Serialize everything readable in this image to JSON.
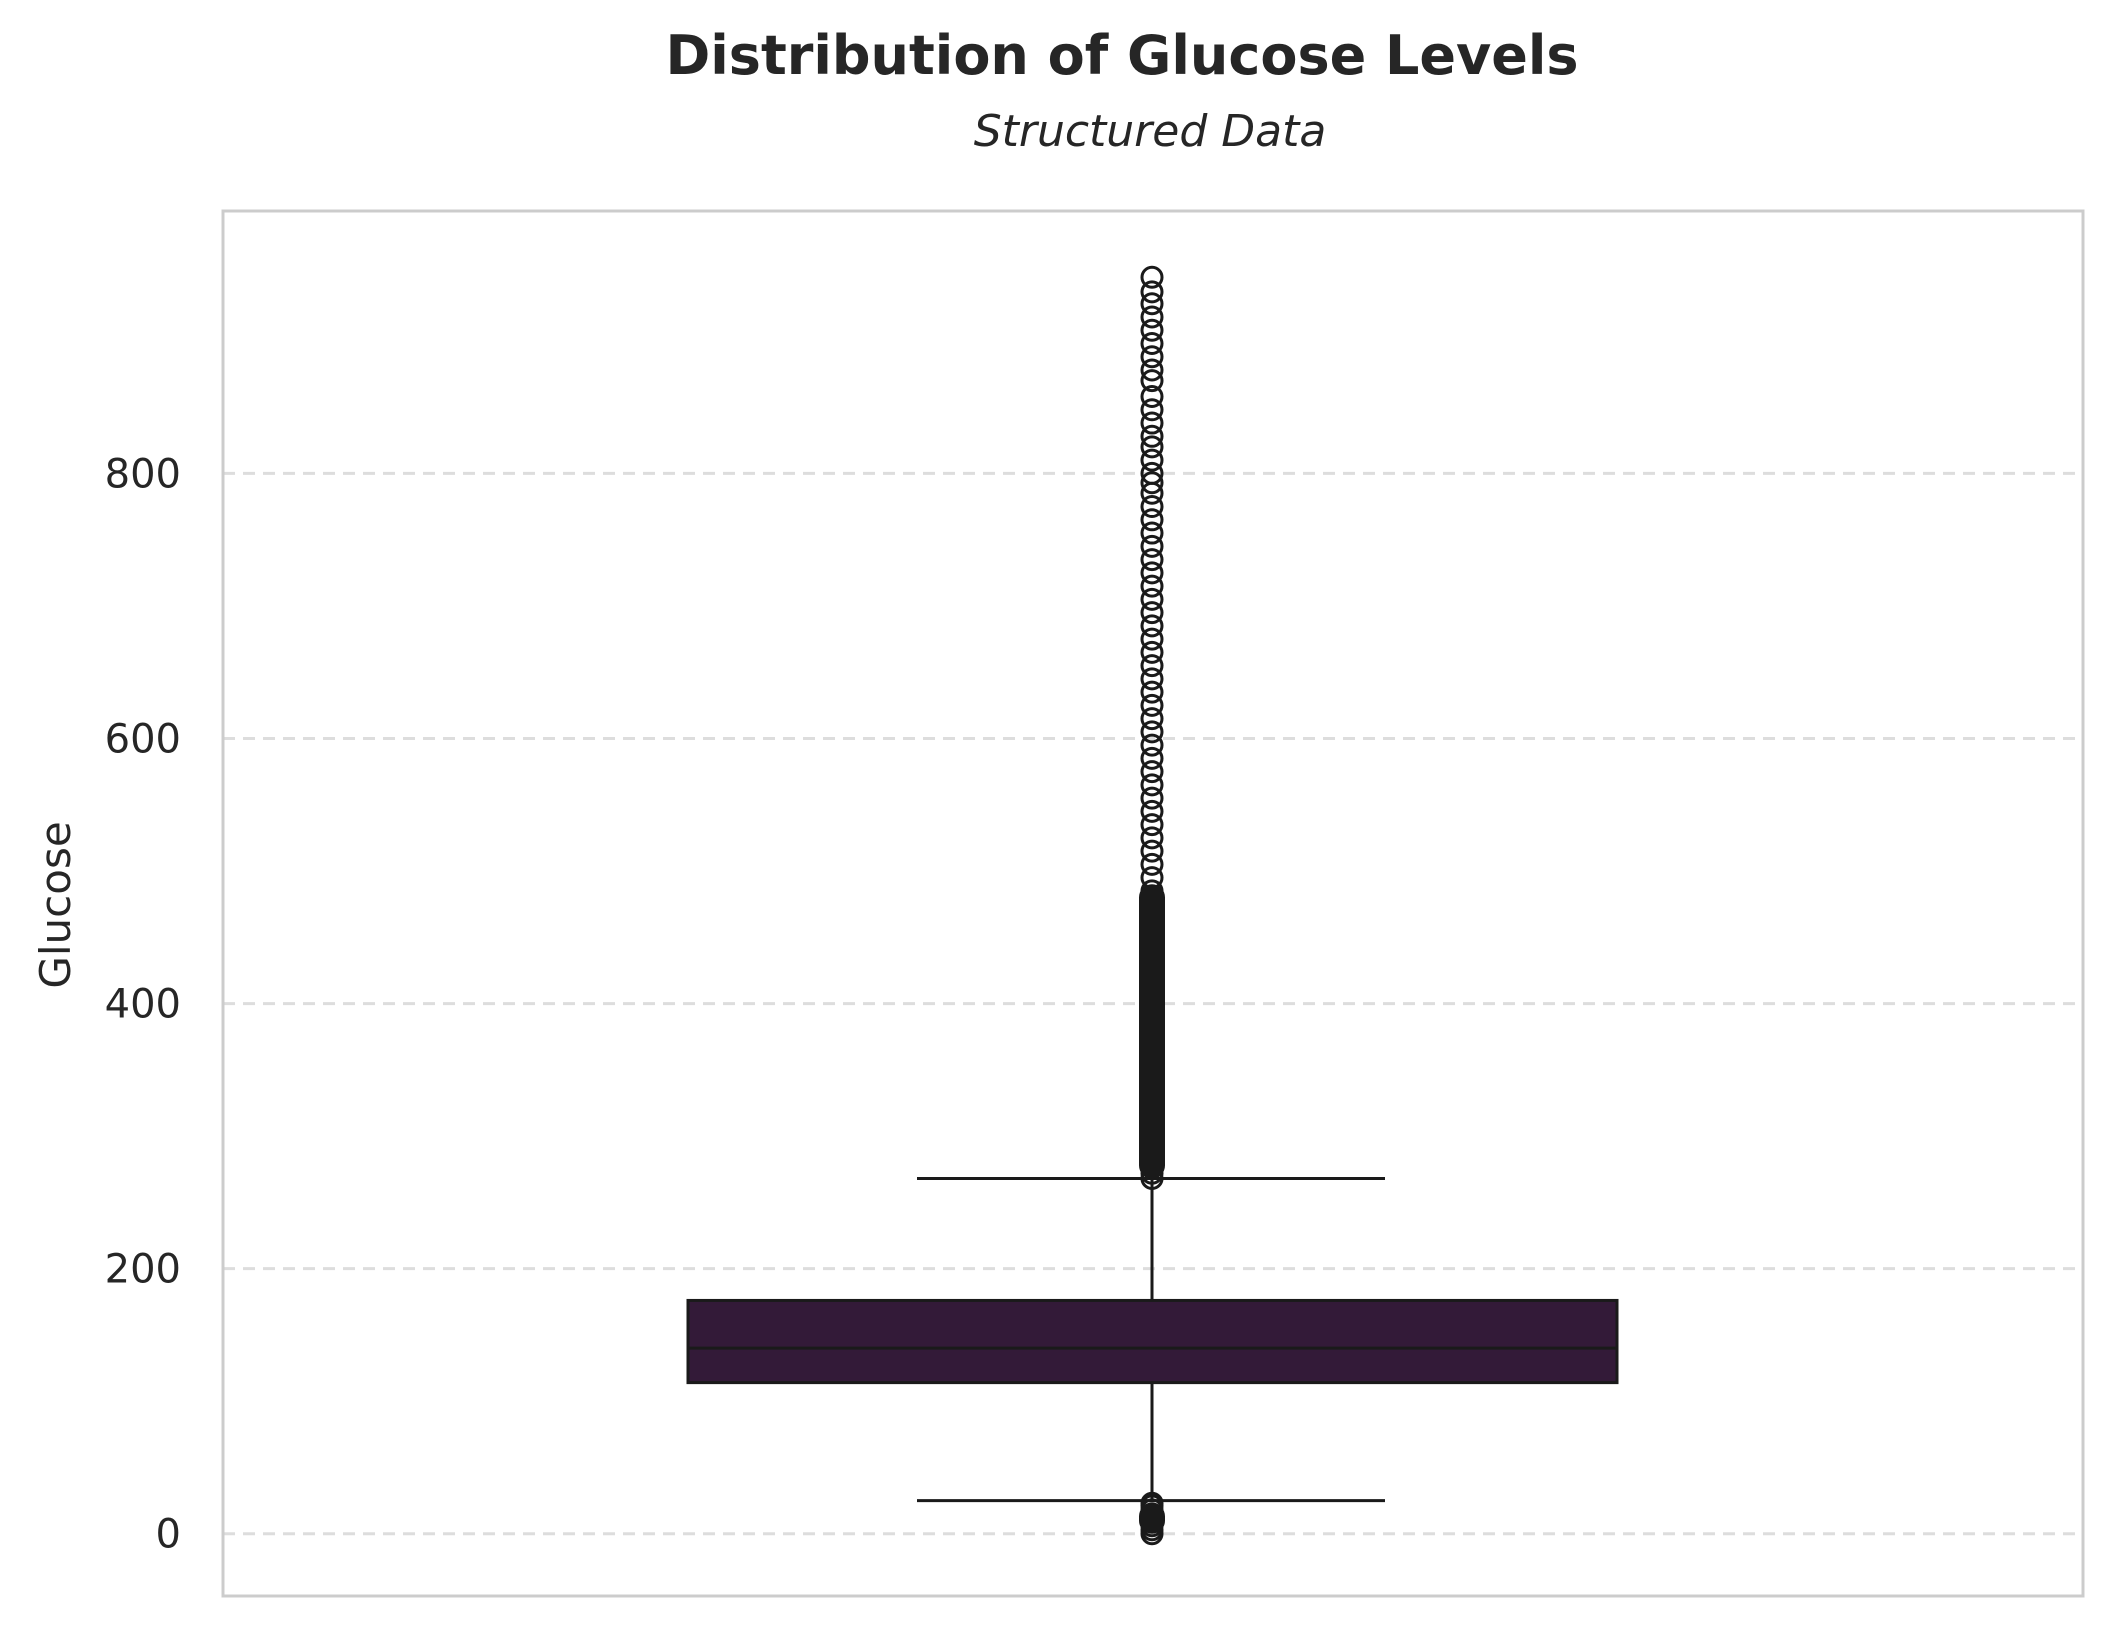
{
  "chart_data": {
    "type": "box",
    "title": "Distribution of Glucose Levels",
    "subtitle": "Structured Data",
    "ylabel": "Glucose",
    "xlabel": "",
    "ylim": [
      -47,
      998
    ],
    "yticks": [
      0,
      200,
      400,
      600,
      800
    ],
    "grid": "horizontal-dashed",
    "legend": "none",
    "box": {
      "q1": 114,
      "median": 140,
      "q3": 176,
      "whisker_low": 25,
      "whisker_high": 268,
      "color": "#331a38"
    },
    "outliers_high": [
      268,
      272,
      276,
      280,
      285,
      290,
      296,
      302,
      310,
      318,
      326,
      335,
      344,
      354,
      364,
      375,
      386,
      398,
      410,
      422,
      435,
      448,
      460,
      472,
      485,
      495,
      505,
      515,
      525,
      535,
      545,
      555,
      565,
      575,
      585,
      595,
      605,
      615,
      625,
      635,
      645,
      655,
      665,
      675,
      685,
      695,
      705,
      715,
      725,
      735,
      745,
      755,
      765,
      775,
      785,
      793,
      800,
      810,
      820,
      828,
      838,
      848,
      858,
      870,
      878,
      888,
      898,
      908,
      918,
      928,
      937,
      948
    ],
    "outliers_low": [
      0,
      3,
      6,
      9,
      12,
      15,
      18,
      21,
      23
    ]
  }
}
